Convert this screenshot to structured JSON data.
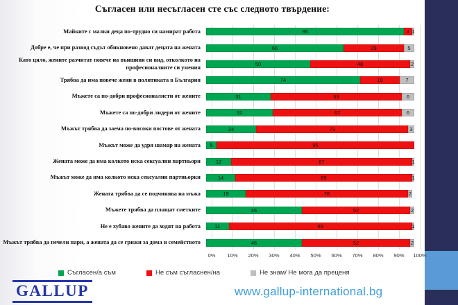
{
  "title": "Съгласен или несъгласен сте със следното твърдение:",
  "chart_data": {
    "type": "bar",
    "orientation": "horizontal-stacked",
    "xlim": [
      0,
      100
    ],
    "grid": true,
    "x_ticks": [
      "0%",
      "10%",
      "20%",
      "30%",
      "40%",
      "50%",
      "60%",
      "70%",
      "80%",
      "90%",
      "100%"
    ],
    "legend_position": "bottom",
    "legend": [
      {
        "label": "Съгласен/а съм",
        "color": "#00A651"
      },
      {
        "label": "Не съм съгласнен/на",
        "color": "#EE1111"
      },
      {
        "label": "Не знам/ Не мога да преценя",
        "color": "#BFBFBF"
      }
    ],
    "series_names": [
      "Съгласен/а съм",
      "Не съм съгласнен/на",
      "Не знам/ Не мога да преценя"
    ],
    "rows": [
      {
        "category": "Майките с малки деца по-трудно си намират работа",
        "agree": 95,
        "disagree": 4,
        "dontknow": 1
      },
      {
        "category": "Добре е, че при развод съдът обикновено дават децата на жената",
        "agree": 66,
        "disagree": 29,
        "dontknow": 5
      },
      {
        "category": "Като цяло, жените разчитат повече на външния си вид, отколкото на професионалните си умения",
        "agree": 50,
        "disagree": 48,
        "dontknow": 2
      },
      {
        "category": "Трябва да има повече жени в политиката в България",
        "agree": 74,
        "disagree": 19,
        "dontknow": 7
      },
      {
        "category": "Мъжете са по-добри професионалисти от жените",
        "agree": 31,
        "disagree": 63,
        "dontknow": 6
      },
      {
        "category": "Мъжете са по-добри лидери от жените",
        "agree": 32,
        "disagree": 62,
        "dontknow": 6
      },
      {
        "category": "Мъжът трябва да заема по-високи постове от жената",
        "agree": 24,
        "disagree": 73,
        "dontknow": 3
      },
      {
        "category": "Мъжът може да удря шамар на жената",
        "agree": 5,
        "disagree": 95,
        "dontknow": 0
      },
      {
        "category": "Жената може да има колкото иска сексуални партньори",
        "agree": 12,
        "disagree": 87,
        "dontknow": 1
      },
      {
        "category": "Мъжът може да има колкото иска сексуални партньорки",
        "agree": 14,
        "disagree": 85,
        "dontknow": 1
      },
      {
        "category": "Жената трябва да се подчинява на мъжа",
        "agree": 19,
        "disagree": 78,
        "dontknow": 2
      },
      {
        "category": "Мъжете трябва да плащат сметките",
        "agree": 46,
        "disagree": 52,
        "dontknow": 2
      },
      {
        "category": "Не е хубаво жените да ходят на работа",
        "agree": 11,
        "disagree": 89,
        "dontknow": 1
      },
      {
        "category": "Мъжът трябва да печели пари, а жената да се грижи за дома и семейството",
        "agree": 46,
        "disagree": 52,
        "dontknow": 2
      }
    ]
  },
  "footer": {
    "logo_text": "GALLUP",
    "website": "www.gallup-international.bg"
  },
  "colors": {
    "agree": "#00A651",
    "disagree": "#EE1111",
    "dontknow": "#BFBFBF",
    "navy": "#2A2F5A",
    "lightblue": "#5B9BD5",
    "logo_blue": "#2535A8",
    "website_blue": "#3F9ED8"
  }
}
